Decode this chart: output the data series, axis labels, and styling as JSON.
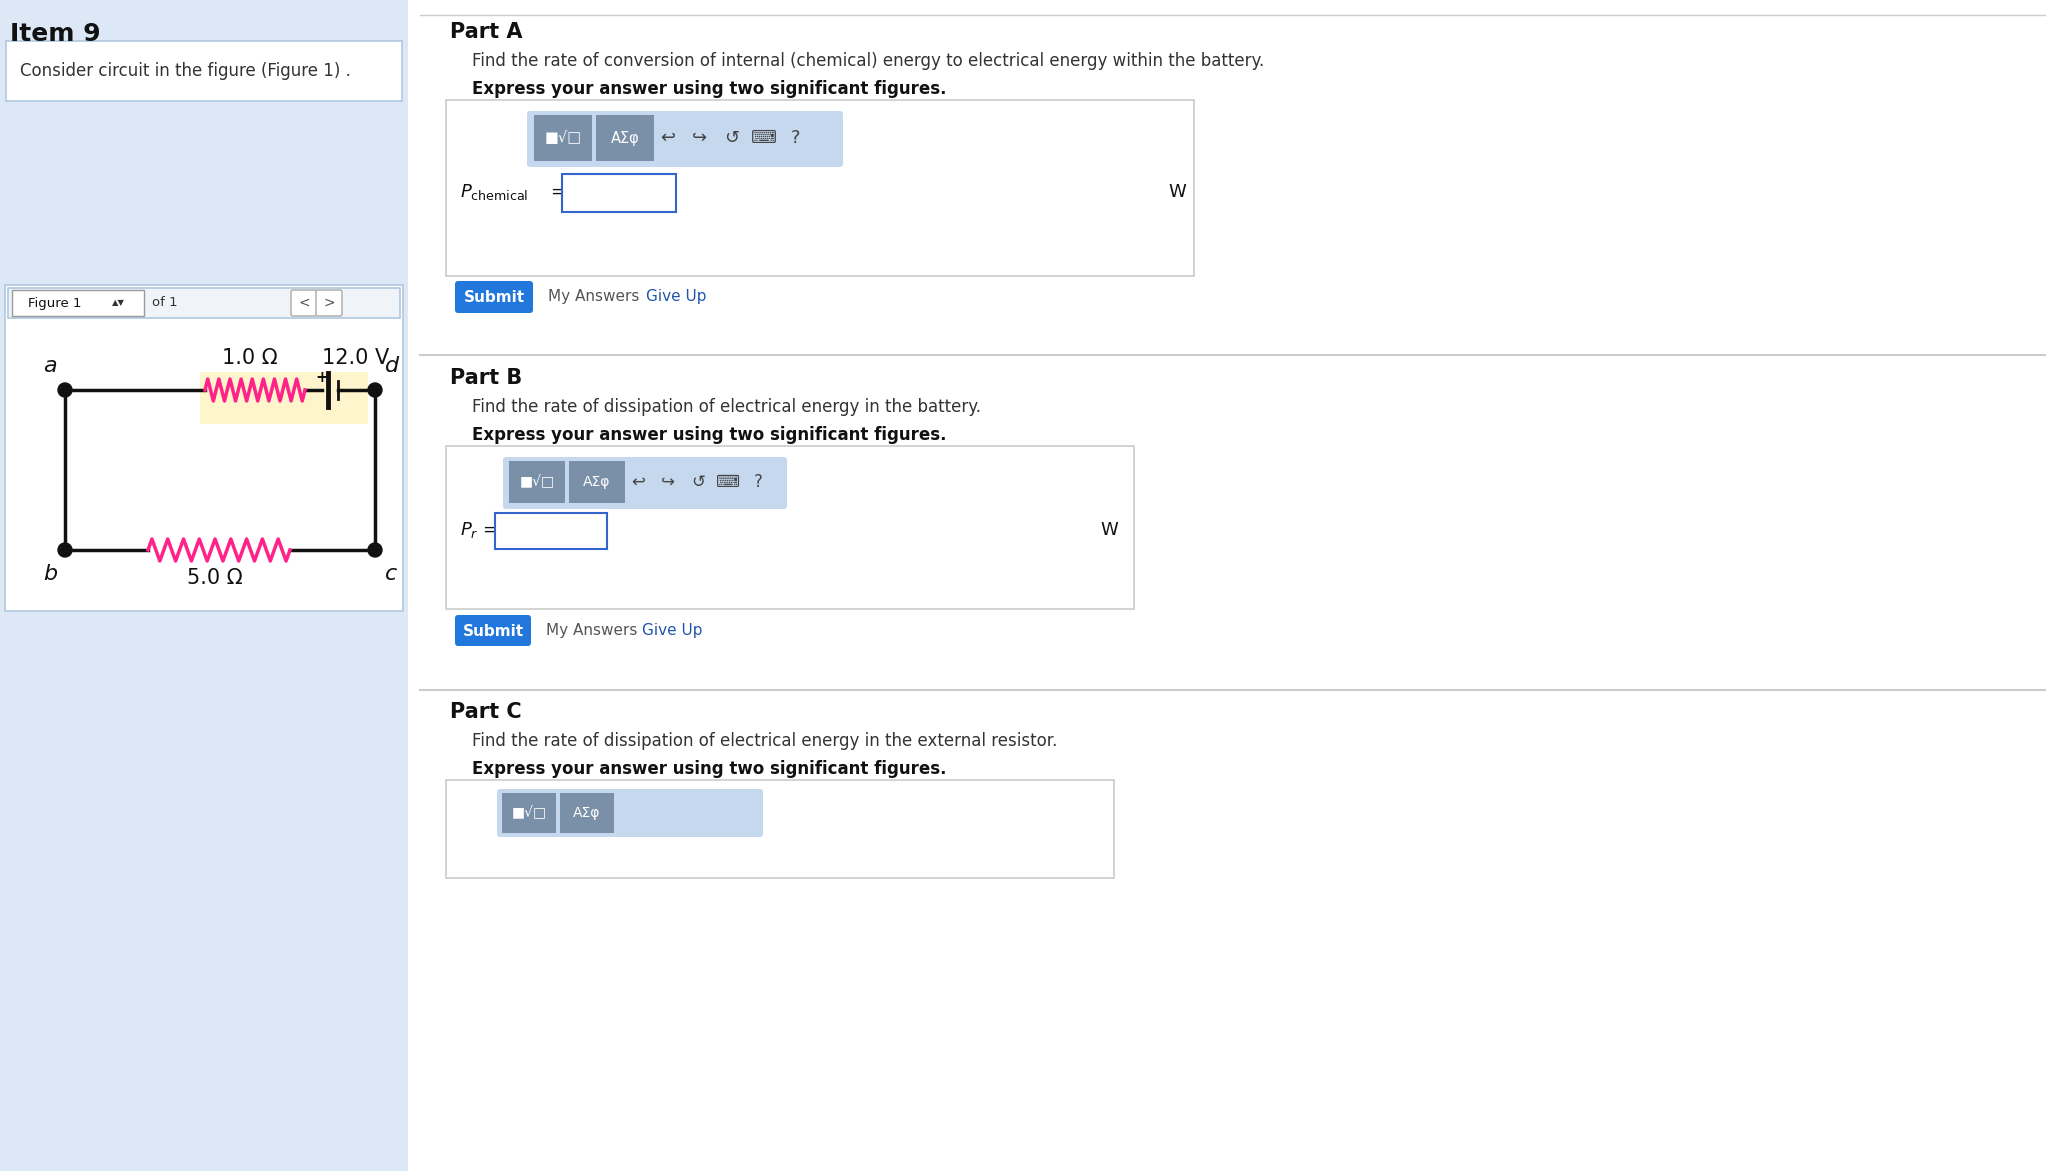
{
  "bg_color": "#dce8f5",
  "white": "#ffffff",
  "border_color": "#b0c8e0",
  "title": "Item 9",
  "figure_label": "Figure 1",
  "of_1": "of 1",
  "part_a_title": "Part A",
  "part_a_desc": "Find the rate of conversion of internal (chemical) energy to electrical energy within the battery.",
  "part_a_bold": "Express your answer using two significant figures.",
  "part_b_title": "Part B",
  "part_b_desc": "Find the rate of dissipation of electrical energy in the battery.",
  "part_b_bold": "Express your answer using two significant figures.",
  "part_c_title": "Part C",
  "part_c_desc": "Find the rate of dissipation of electrical energy in the external resistor.",
  "part_c_bold": "Express your answer using two significant figures.",
  "submit_color": "#2277dd",
  "link_color": "#2255aa",
  "resistor_color_pink": "#ff2288",
  "battery_bg": "#fff5cc",
  "circuit_line_color": "#111111",
  "node_color": "#111111",
  "label_a": "a",
  "label_b": "b",
  "label_c": "c",
  "label_d": "d",
  "r1_label": "1.0 Ω",
  "v_label": "12.0 V",
  "r2_label": "5.0 Ω",
  "toolbar_bg": "#c5d8ee",
  "toolbar_btn_color": "#7a8fa8",
  "input_border": "#3366cc"
}
